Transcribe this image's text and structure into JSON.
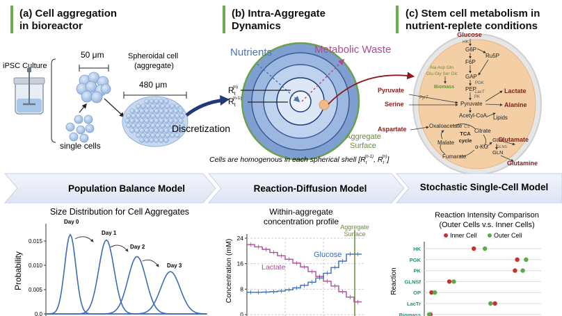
{
  "panel_a": {
    "title_line1": "(a) Cell aggregation",
    "title_line2": "in bioreactor",
    "ipsc_label": "iPSC Culture",
    "size_small": "50 μm",
    "spheroid_line1": "Spheroidal cell",
    "spheroid_line2": "(aggregate)",
    "size_large": "480 μm",
    "single_cells": "single cells",
    "discretization": "Discretization"
  },
  "panel_b": {
    "title_line1": "(b) Intra-Aggregate",
    "title_line2": "Dynamics",
    "nutrients": "Nutrients",
    "waste": "Metabolic Waste",
    "r_n": "R",
    "r_n_sub": "t",
    "r_n_sup": "(n)",
    "r_n1": "R",
    "r_n1_sub": "t",
    "r_n1_sup": "(n-1)",
    "surface_line1": "Aggregate",
    "surface_line2": "Surface",
    "caption": "Cells are homogenous in each spherical shell [R",
    "caption_tail": ", R",
    "caption_end": "]",
    "caption_sub": "t",
    "caption_sup1": "(n-1)",
    "caption_sup2": "(n)"
  },
  "panel_c": {
    "title_line1": "(c) Stem cell metabolism in",
    "title_line2": "nutrient-replete conditions",
    "metabolites": {
      "glucose": "Glucose",
      "hk": "HK",
      "g6p": "G6P",
      "ru5p": "Ru5P",
      "f6p": "F6P",
      "gap": "GAP",
      "pgk": "PGK",
      "pep": "PEP",
      "pk": "PK",
      "amino_line1": "Ala Asp Gln",
      "amino_line2": "Glu Gly Ser Glc",
      "biomass": "Biomass",
      "pyruvate_out": "Pyruvate",
      "pyrt": "PyrT",
      "lactr": "LacT",
      "pyruvate_in": "Pyruvate",
      "lactate": "Lactate",
      "serine": "Serine",
      "alanine": "Alanine",
      "acetyl": "Acetyl-CoA",
      "lipids": "Lipids",
      "aspartate": "Aspartate",
      "oxaloacetate": "Oxaloacetate",
      "citrate": "Citrate",
      "cs": "CS",
      "tca1": "TCA",
      "tca2": "cycle",
      "malate": "Malate",
      "akg": "α-KG",
      "fumarate": "Fumarate",
      "glu": "GLU",
      "glnsf": "GLNS",
      "gln": "GLN",
      "glutamate": "Glutamate",
      "glutamine": "Glutamine"
    }
  },
  "arrows_row": {
    "pbm": "Population Balance Model",
    "rdm": "Reaction-Diffusion Model",
    "sscm": "Stochastic Single-Cell Model"
  },
  "colors": {
    "accent_green": "#6cad4f",
    "chart_blue": "#3b6bb5",
    "chart_pink": "#b04a98",
    "nutrient_blue": "#4a75b8",
    "waste_pink": "#b04a8e",
    "metabolite_red": "#8b1a1a",
    "inner_red": "#c9302c",
    "outer_green": "#5aaa4c"
  },
  "chart_data": [
    {
      "type": "line",
      "title": "Size Distribution for Cell Aggregates",
      "xlabel": "",
      "ylabel": "Probability",
      "yticks": [
        "0.0",
        "0.005",
        "0.010",
        "0.015"
      ],
      "ylim": [
        0,
        0.018
      ],
      "series": [
        {
          "name": "Day 0",
          "peak": 0.0163
        },
        {
          "name": "Day 1",
          "peak": 0.0152
        },
        {
          "name": "Day 2",
          "peak": 0.0118
        },
        {
          "name": "Day 3",
          "peak": 0.0087
        }
      ]
    },
    {
      "type": "line",
      "title": "Within-aggregate concentration profile",
      "title_line1": "Within-aggregate",
      "title_line2": "concentration profile",
      "ylabel": "Concentration (mM)",
      "yticks": [
        "0",
        "8",
        "16",
        "24"
      ],
      "ylim": [
        0,
        24
      ],
      "annotation_line1": "Aggregate",
      "annotation_line2": "Surface",
      "series": [
        {
          "name": "Lactate",
          "values": [
            22,
            21.3,
            20.5,
            19.5,
            18.5,
            17.4,
            16.2,
            15,
            13.5,
            12,
            10.5,
            9,
            7.2,
            5.5,
            4
          ]
        },
        {
          "name": "Glucose",
          "values": [
            7,
            7,
            7.1,
            7.2,
            7.4,
            7.8,
            8.4,
            9.2,
            10.2,
            11.5,
            13,
            14.8,
            16.8,
            19,
            19
          ]
        }
      ]
    },
    {
      "type": "scatter",
      "title": "Reaction Intensity Comparison",
      "subtitle": "(Outer Cells v.s. Inner Cells)",
      "ylabel": "Reaction",
      "categories": [
        "HK",
        "PGK",
        "PK",
        "GLNSf",
        "OP",
        "LacTr",
        "Biomass"
      ],
      "series": [
        {
          "name": "Inner Cell",
          "values": [
            0.42,
            0.81,
            0.79,
            0.2,
            0.04,
            0.61,
            0.03
          ]
        },
        {
          "name": "Outer Cell",
          "values": [
            0.52,
            0.89,
            0.86,
            0.24,
            0.07,
            0.57,
            0.02
          ]
        }
      ]
    }
  ]
}
